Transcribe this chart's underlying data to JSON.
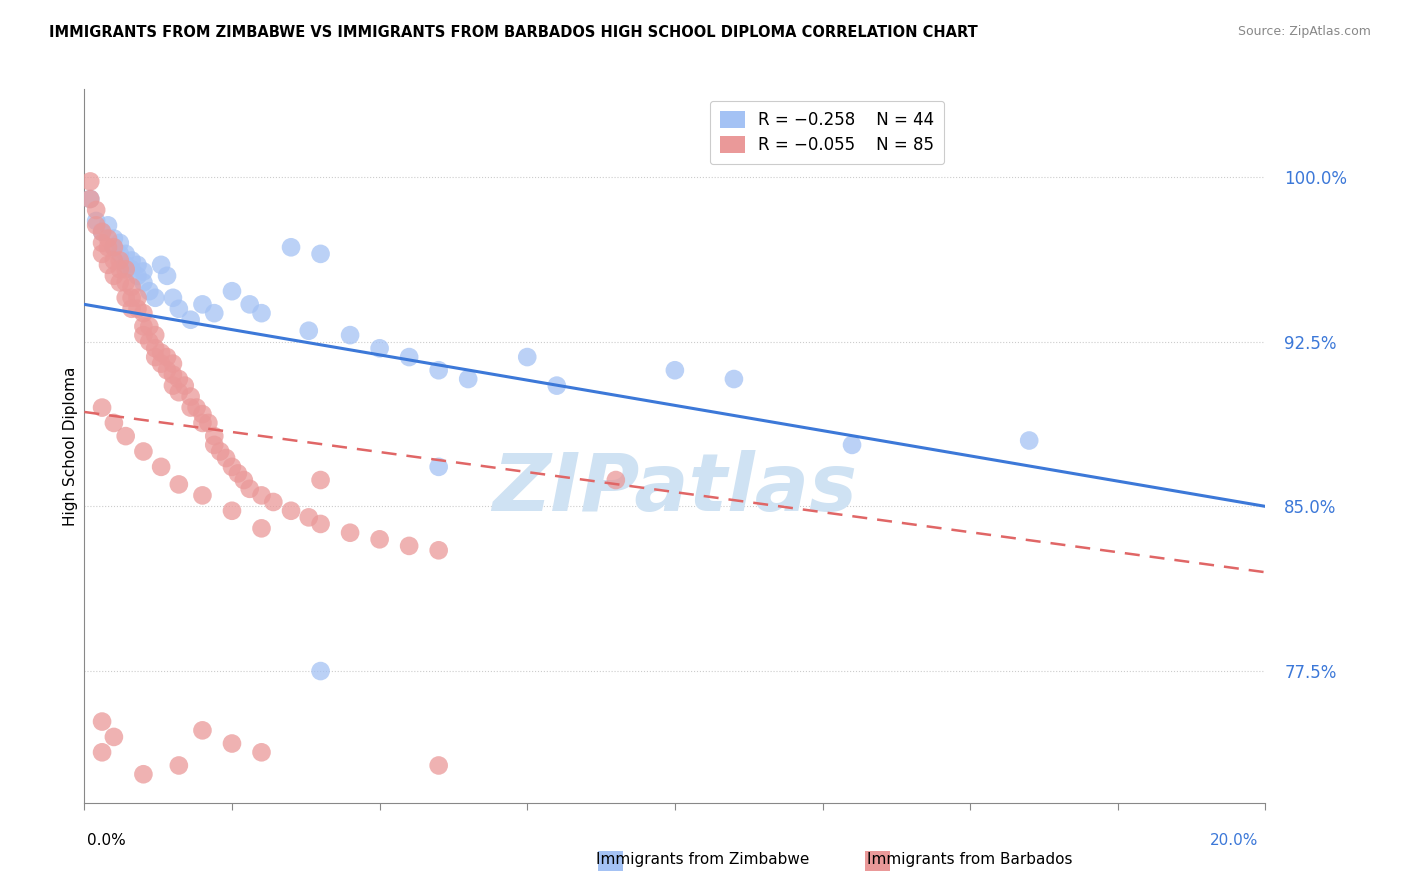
{
  "title": "IMMIGRANTS FROM ZIMBABWE VS IMMIGRANTS FROM BARBADOS HIGH SCHOOL DIPLOMA CORRELATION CHART",
  "source": "Source: ZipAtlas.com",
  "ylabel": "High School Diploma",
  "yticks": [
    0.775,
    0.85,
    0.925,
    1.0
  ],
  "ytick_labels": [
    "77.5%",
    "85.0%",
    "92.5%",
    "100.0%"
  ],
  "xmin": 0.0,
  "xmax": 0.2,
  "ymin": 0.715,
  "ymax": 1.04,
  "legend_blue_r": "R = −0.258",
  "legend_blue_n": "N = 44",
  "legend_pink_r": "R = −0.055",
  "legend_pink_n": "N = 85",
  "blue_color": "#a4c2f4",
  "pink_color": "#ea9999",
  "blue_line_color": "#3c78d8",
  "pink_line_color": "#e06666",
  "watermark": "ZIPatlas",
  "watermark_color": "#cfe2f3",
  "blue_line_y0": 0.942,
  "blue_line_y1": 0.85,
  "pink_line_y0": 0.893,
  "pink_line_y1": 0.82,
  "blue_scatter_x": [
    0.001,
    0.002,
    0.003,
    0.004,
    0.005,
    0.005,
    0.006,
    0.006,
    0.007,
    0.007,
    0.008,
    0.008,
    0.009,
    0.009,
    0.01,
    0.01,
    0.011,
    0.012,
    0.013,
    0.014,
    0.015,
    0.016,
    0.018,
    0.02,
    0.022,
    0.025,
    0.028,
    0.03,
    0.035,
    0.038,
    0.04,
    0.045,
    0.05,
    0.055,
    0.06,
    0.065,
    0.075,
    0.08,
    0.1,
    0.11,
    0.13,
    0.16,
    0.06,
    0.04
  ],
  "blue_scatter_y": [
    0.99,
    0.98,
    0.975,
    0.978,
    0.972,
    0.968,
    0.965,
    0.97,
    0.96,
    0.965,
    0.958,
    0.962,
    0.955,
    0.96,
    0.952,
    0.957,
    0.948,
    0.945,
    0.96,
    0.955,
    0.945,
    0.94,
    0.935,
    0.942,
    0.938,
    0.948,
    0.942,
    0.938,
    0.968,
    0.93,
    0.965,
    0.928,
    0.922,
    0.918,
    0.912,
    0.908,
    0.918,
    0.905,
    0.912,
    0.908,
    0.878,
    0.88,
    0.868,
    0.775
  ],
  "pink_scatter_x": [
    0.001,
    0.001,
    0.002,
    0.002,
    0.003,
    0.003,
    0.003,
    0.004,
    0.004,
    0.004,
    0.005,
    0.005,
    0.005,
    0.006,
    0.006,
    0.006,
    0.007,
    0.007,
    0.007,
    0.008,
    0.008,
    0.008,
    0.009,
    0.009,
    0.01,
    0.01,
    0.01,
    0.011,
    0.011,
    0.012,
    0.012,
    0.012,
    0.013,
    0.013,
    0.014,
    0.014,
    0.015,
    0.015,
    0.015,
    0.016,
    0.016,
    0.017,
    0.018,
    0.018,
    0.019,
    0.02,
    0.02,
    0.021,
    0.022,
    0.022,
    0.023,
    0.024,
    0.025,
    0.026,
    0.027,
    0.028,
    0.03,
    0.032,
    0.035,
    0.038,
    0.04,
    0.045,
    0.05,
    0.055,
    0.06,
    0.003,
    0.005,
    0.007,
    0.01,
    0.013,
    0.016,
    0.02,
    0.025,
    0.03,
    0.04,
    0.003,
    0.005,
    0.003,
    0.016,
    0.01,
    0.02,
    0.025,
    0.03,
    0.06,
    0.09
  ],
  "pink_scatter_y": [
    0.998,
    0.99,
    0.985,
    0.978,
    0.975,
    0.97,
    0.965,
    0.972,
    0.968,
    0.96,
    0.968,
    0.962,
    0.955,
    0.962,
    0.958,
    0.952,
    0.958,
    0.952,
    0.945,
    0.95,
    0.945,
    0.94,
    0.945,
    0.94,
    0.938,
    0.932,
    0.928,
    0.932,
    0.925,
    0.928,
    0.922,
    0.918,
    0.92,
    0.915,
    0.918,
    0.912,
    0.915,
    0.91,
    0.905,
    0.908,
    0.902,
    0.905,
    0.9,
    0.895,
    0.895,
    0.892,
    0.888,
    0.888,
    0.882,
    0.878,
    0.875,
    0.872,
    0.868,
    0.865,
    0.862,
    0.858,
    0.855,
    0.852,
    0.848,
    0.845,
    0.842,
    0.838,
    0.835,
    0.832,
    0.83,
    0.895,
    0.888,
    0.882,
    0.875,
    0.868,
    0.86,
    0.855,
    0.848,
    0.84,
    0.862,
    0.752,
    0.745,
    0.738,
    0.732,
    0.728,
    0.748,
    0.742,
    0.738,
    0.732,
    0.862
  ]
}
